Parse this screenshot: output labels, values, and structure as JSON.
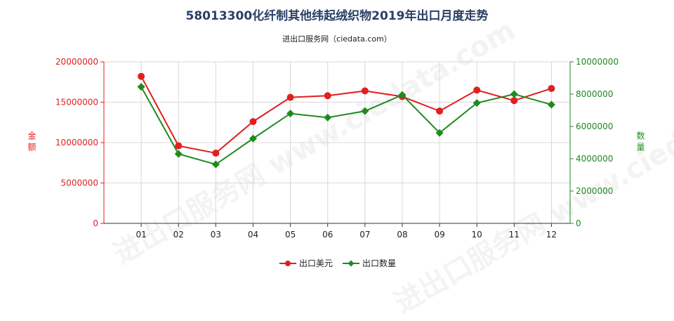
{
  "title": "58013300化纤制其他纬起绒织物2019年出口月度走势",
  "subtitle": "进出口服务网（ciedata.com）",
  "watermark": "进出口服务网 www.ciedata.com",
  "colors": {
    "left_axis": "#e02020",
    "right_axis": "#1f8a1f",
    "grid": "#d9d9d9",
    "axis": "#333333"
  },
  "chart_data": {
    "type": "line",
    "title": "58013300化纤制其他纬起绒织物2019年出口月度走势",
    "subtitle": "进出口服务网（ciedata.com）",
    "categories": [
      "01",
      "02",
      "03",
      "04",
      "05",
      "06",
      "07",
      "08",
      "09",
      "10",
      "11",
      "12"
    ],
    "y_left": {
      "label": "金额",
      "ticks": [
        "0",
        "5000000",
        "10000000",
        "15000000",
        "20000000"
      ],
      "ylim": [
        0,
        20000000
      ]
    },
    "y_right": {
      "label": "数量",
      "ticks": [
        "0",
        "2000000",
        "4000000",
        "6000000",
        "8000000",
        "10000000"
      ],
      "ylim": [
        0,
        10000000
      ]
    },
    "series": [
      {
        "name": "出口美元",
        "axis": "left",
        "color": "#e02020",
        "marker": "circle",
        "values": [
          18200000,
          9600000,
          8700000,
          12600000,
          15600000,
          15800000,
          16400000,
          15700000,
          13900000,
          16500000,
          15200000,
          16700000
        ]
      },
      {
        "name": "出口数量",
        "axis": "right",
        "color": "#1f8a1f",
        "marker": "diamond",
        "values": [
          8450000,
          4300000,
          3650000,
          5250000,
          6800000,
          6550000,
          6950000,
          7950000,
          5600000,
          7450000,
          8000000,
          7350000
        ]
      }
    ],
    "grid": true,
    "legend": "bottom-center"
  }
}
